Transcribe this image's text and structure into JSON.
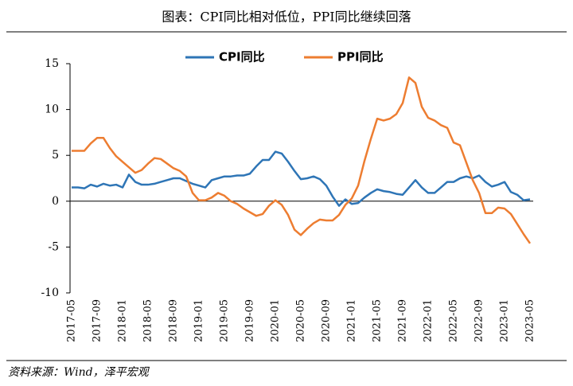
{
  "chart_data": {
    "type": "line",
    "title": "图表：CPI同比相对低位，PPI同比继续回落",
    "source": "资料来源：Wind，泽平宏观",
    "categories": [
      "2017-05",
      null,
      null,
      null,
      "2017-09",
      null,
      null,
      null,
      "2018-01",
      null,
      null,
      null,
      "2018-05",
      null,
      null,
      null,
      "2018-09",
      null,
      null,
      null,
      "2019-01",
      null,
      null,
      null,
      "2019-05",
      null,
      null,
      null,
      "2019-09",
      null,
      null,
      null,
      "2020-01",
      null,
      null,
      null,
      "2020-05",
      null,
      null,
      null,
      "2020-09",
      null,
      null,
      null,
      "2021-01",
      null,
      null,
      null,
      "2021-05",
      null,
      null,
      null,
      "2021-09",
      null,
      null,
      null,
      "2022-01",
      null,
      null,
      null,
      "2022-05",
      null,
      null,
      null,
      "2022-09",
      null,
      null,
      null,
      "2023-01",
      null,
      null,
      null,
      "2023-05"
    ],
    "series": [
      {
        "name": "CPI同比",
        "color": "#2e75b6",
        "values": [
          1.5,
          1.5,
          1.4,
          1.8,
          1.6,
          1.9,
          1.7,
          1.8,
          1.5,
          2.9,
          2.1,
          1.8,
          1.8,
          1.9,
          2.1,
          2.3,
          2.5,
          2.5,
          2.2,
          1.9,
          1.7,
          1.5,
          2.3,
          2.5,
          2.7,
          2.7,
          2.8,
          2.8,
          3.0,
          3.8,
          4.5,
          4.5,
          5.4,
          5.2,
          4.3,
          3.3,
          2.4,
          2.5,
          2.7,
          2.4,
          1.7,
          0.5,
          -0.5,
          0.2,
          -0.3,
          -0.2,
          0.4,
          0.9,
          1.3,
          1.1,
          1.0,
          0.8,
          0.7,
          1.5,
          2.3,
          1.5,
          0.9,
          0.9,
          1.5,
          2.1,
          2.1,
          2.5,
          2.7,
          2.5,
          2.8,
          2.1,
          1.6,
          1.8,
          2.1,
          1.0,
          0.7,
          0.1,
          0.2
        ]
      },
      {
        "name": "PPI同比",
        "color": "#ed7d31",
        "values": [
          5.5,
          5.5,
          5.5,
          6.3,
          6.9,
          6.9,
          5.8,
          4.9,
          4.3,
          3.7,
          3.1,
          3.4,
          4.1,
          4.7,
          4.6,
          4.1,
          3.6,
          3.3,
          2.7,
          0.9,
          0.1,
          0.1,
          0.4,
          0.9,
          0.6,
          0.0,
          -0.3,
          -0.8,
          -1.2,
          -1.6,
          -1.4,
          -0.5,
          0.1,
          -0.4,
          -1.5,
          -3.1,
          -3.7,
          -3.0,
          -2.4,
          -2.0,
          -2.1,
          -2.1,
          -1.5,
          -0.4,
          0.3,
          1.7,
          4.4,
          6.8,
          9.0,
          8.8,
          9.0,
          9.5,
          10.7,
          13.5,
          12.9,
          10.3,
          9.1,
          8.8,
          8.3,
          8.0,
          6.4,
          6.1,
          4.2,
          2.3,
          0.9,
          -1.3,
          -1.3,
          -0.7,
          -0.8,
          -1.4,
          -2.5,
          -3.6,
          -4.6
        ]
      }
    ],
    "ylim": [
      -10,
      15
    ],
    "yticks": [
      -10,
      -5,
      0,
      5,
      10,
      15
    ],
    "grid": false,
    "legend": "top"
  }
}
